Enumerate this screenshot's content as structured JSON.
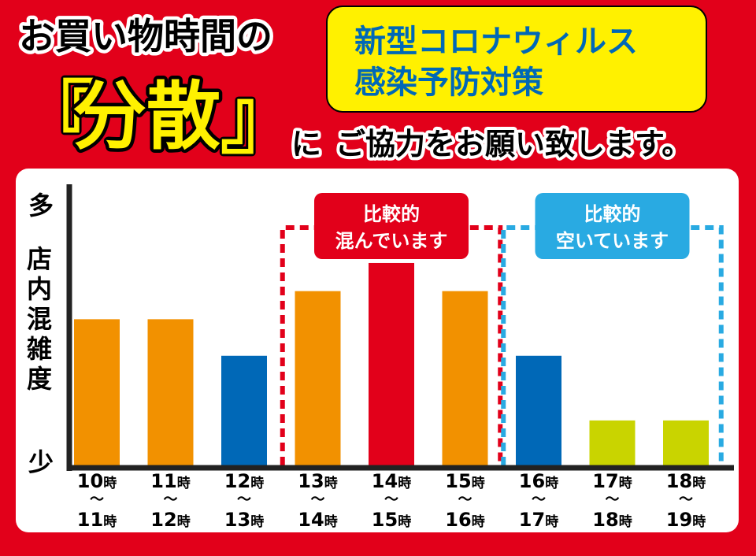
{
  "header": {
    "line1": "お買い物時間の",
    "bracket_open": "『",
    "keyword": "分散",
    "bracket_close": "』",
    "line2_particle": "に",
    "line2_rest": "ご協力をお願い致します。"
  },
  "badge": {
    "line1": "新型コロナウィルス",
    "line2": "感染予防対策"
  },
  "colors": {
    "background": "#e2001a",
    "panel": "#ffffff",
    "badge": "#fff100",
    "badge_text": "#0068b7",
    "orange": "#f29100",
    "red": "#e2001a",
    "blue": "#0068b7",
    "yellowgreen": "#c9d400",
    "cyan": "#29aae2"
  },
  "chart_data": {
    "type": "bar",
    "ylabel": "店内混雑度",
    "y_top_label": "多",
    "y_bottom_label": "少",
    "ylim": [
      0,
      100
    ],
    "categories": [
      {
        "start": "10",
        "end": "11",
        "unit": "時"
      },
      {
        "start": "11",
        "end": "12",
        "unit": "時"
      },
      {
        "start": "12",
        "end": "13",
        "unit": "時"
      },
      {
        "start": "13",
        "end": "14",
        "unit": "時"
      },
      {
        "start": "14",
        "end": "15",
        "unit": "時"
      },
      {
        "start": "15",
        "end": "16",
        "unit": "時"
      },
      {
        "start": "16",
        "end": "17",
        "unit": "時"
      },
      {
        "start": "17",
        "end": "18",
        "unit": "時"
      },
      {
        "start": "18",
        "end": "19",
        "unit": "時"
      }
    ],
    "range_sep": "～",
    "values": [
      52,
      52,
      39,
      62,
      72,
      62,
      39,
      16,
      16
    ],
    "bar_colors": [
      "orange",
      "orange",
      "blue",
      "orange",
      "red",
      "orange",
      "blue",
      "yellowgreen",
      "yellowgreen"
    ],
    "annotations": [
      {
        "line1": "比較的",
        "line2": "混んでいます",
        "color": "red",
        "from_index": 3,
        "to_index": 5
      },
      {
        "line1": "比較的",
        "line2": "空いています",
        "color": "cyan",
        "from_index": 6,
        "to_index": 8
      }
    ]
  }
}
